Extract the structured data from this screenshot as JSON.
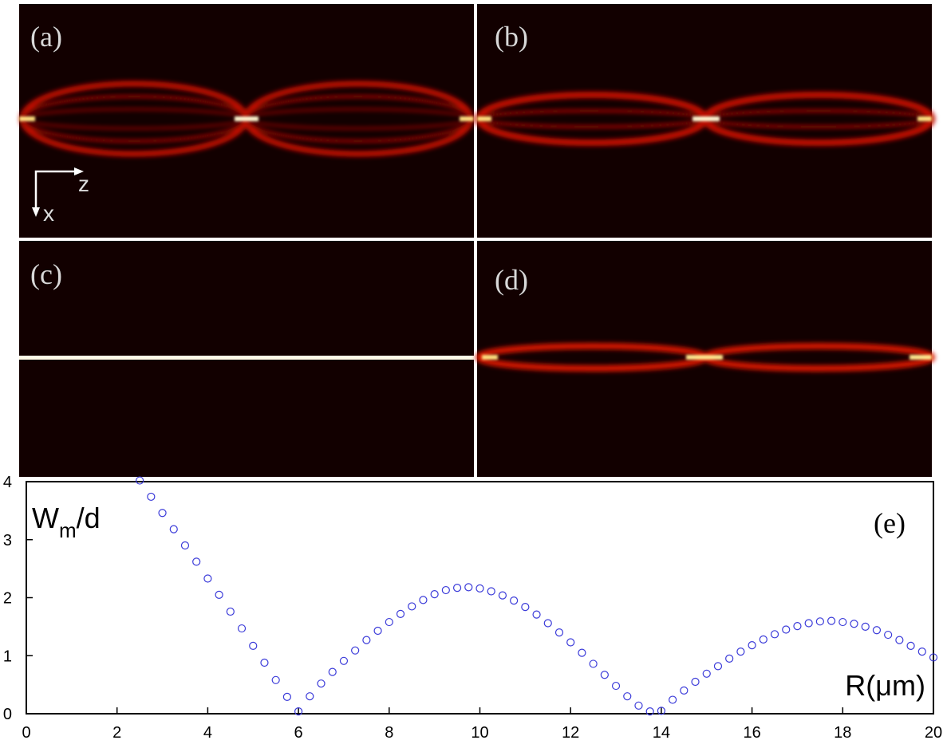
{
  "panels": [
    {
      "label": "(a)"
    },
    {
      "label": "(b)"
    },
    {
      "label": "(c)"
    },
    {
      "label": "(d)"
    }
  ],
  "orientation": {
    "horizontal": "z",
    "vertical": "x"
  },
  "chart_data": {
    "type": "scatter",
    "ylabel_parts": [
      "W",
      "m",
      "/d"
    ],
    "xlabel": "R(μm)",
    "annotation": "(e)",
    "xlim": [
      0,
      20
    ],
    "xticks": [
      0,
      2,
      4,
      6,
      8,
      10,
      12,
      14,
      16,
      18,
      20
    ],
    "ylim": [
      0,
      4
    ],
    "yticks": [
      0,
      1,
      2,
      3,
      4
    ],
    "color": "#3b3bd9",
    "x": [
      2.5,
      2.75,
      3.0,
      3.25,
      3.5,
      3.75,
      4.0,
      4.25,
      4.5,
      4.75,
      5.0,
      5.25,
      5.5,
      5.75,
      6.0,
      6.25,
      6.5,
      6.75,
      7.0,
      7.25,
      7.5,
      7.75,
      8.0,
      8.25,
      8.5,
      8.75,
      9.0,
      9.25,
      9.5,
      9.75,
      10.0,
      10.25,
      10.5,
      10.75,
      11.0,
      11.25,
      11.5,
      11.75,
      12.0,
      12.25,
      12.5,
      12.75,
      13.0,
      13.25,
      13.5,
      13.75,
      14.0,
      14.25,
      14.5,
      14.75,
      15.0,
      15.25,
      15.5,
      15.75,
      16.0,
      16.25,
      16.5,
      16.75,
      17.0,
      17.25,
      17.5,
      17.75,
      18.0,
      18.25,
      18.5,
      18.75,
      19.0,
      19.25,
      19.5,
      19.75,
      20.0
    ],
    "values": [
      4.02,
      3.74,
      3.46,
      3.18,
      2.9,
      2.62,
      2.33,
      2.05,
      1.76,
      1.47,
      1.17,
      0.88,
      0.58,
      0.29,
      0.04,
      0.3,
      0.52,
      0.72,
      0.91,
      1.09,
      1.27,
      1.43,
      1.58,
      1.72,
      1.85,
      1.96,
      2.06,
      2.13,
      2.17,
      2.18,
      2.16,
      2.11,
      2.04,
      1.95,
      1.84,
      1.71,
      1.56,
      1.4,
      1.23,
      1.05,
      0.86,
      0.67,
      0.48,
      0.3,
      0.14,
      0.04,
      0.05,
      0.24,
      0.4,
      0.55,
      0.69,
      0.82,
      0.95,
      1.07,
      1.18,
      1.28,
      1.37,
      1.45,
      1.51,
      1.56,
      1.59,
      1.6,
      1.58,
      1.55,
      1.5,
      1.44,
      1.36,
      1.27,
      1.17,
      1.07,
      0.97
    ]
  }
}
